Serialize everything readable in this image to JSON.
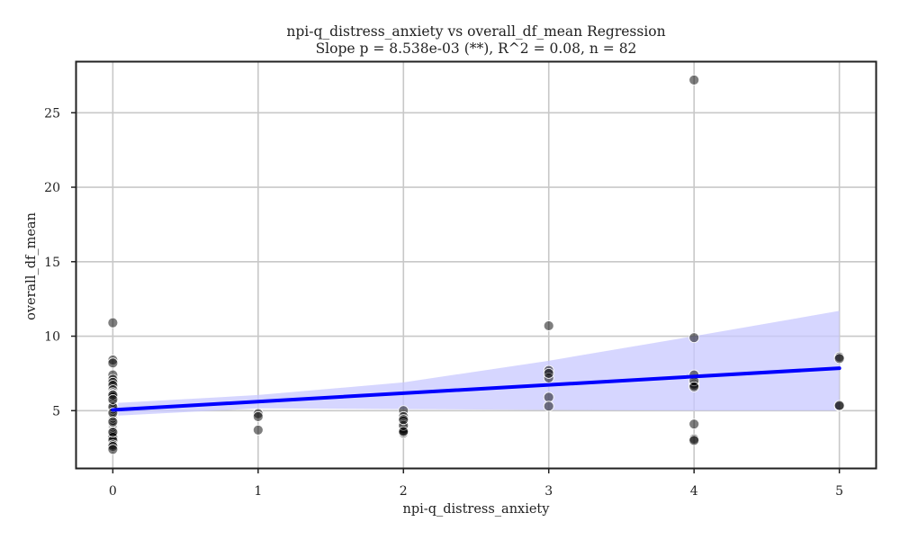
{
  "chart_data": {
    "type": "scatter",
    "title": "npi-q_distress_anxiety vs overall_df_mean Regression",
    "subtitle": "Slope p = 8.538e-03 (**), R^2 = 0.08, n = 82",
    "xlabel": "npi-q_distress_anxiety",
    "ylabel": "overall_df_mean",
    "xlim": [
      -0.25,
      5.25
    ],
    "ylim": [
      1.15,
      28.4
    ],
    "x_ticks": [
      0,
      1,
      2,
      3,
      4,
      5
    ],
    "y_ticks": [
      5,
      10,
      15,
      20,
      25
    ],
    "grid": true,
    "colors": {
      "points": "#000000",
      "regression_line": "#0000ff",
      "confidence_band": "#c8c8ff"
    },
    "points": [
      {
        "x": 0,
        "y": 10.9
      },
      {
        "x": 0,
        "y": 8.4
      },
      {
        "x": 0,
        "y": 8.2
      },
      {
        "x": 0,
        "y": 7.4
      },
      {
        "x": 0,
        "y": 7.1
      },
      {
        "x": 0,
        "y": 6.9
      },
      {
        "x": 0,
        "y": 6.7
      },
      {
        "x": 0,
        "y": 6.4
      },
      {
        "x": 0,
        "y": 6.2
      },
      {
        "x": 0,
        "y": 6.1
      },
      {
        "x": 0,
        "y": 6.0
      },
      {
        "x": 0,
        "y": 5.9
      },
      {
        "x": 0,
        "y": 5.7
      },
      {
        "x": 0,
        "y": 5.6
      },
      {
        "x": 0,
        "y": 5.5
      },
      {
        "x": 0,
        "y": 5.4
      },
      {
        "x": 0,
        "y": 5.3
      },
      {
        "x": 0,
        "y": 5.2
      },
      {
        "x": 0,
        "y": 5.1
      },
      {
        "x": 0,
        "y": 5.0
      },
      {
        "x": 0,
        "y": 4.9
      },
      {
        "x": 0,
        "y": 4.8
      },
      {
        "x": 0,
        "y": 4.7
      },
      {
        "x": 0,
        "y": 4.6
      },
      {
        "x": 0,
        "y": 4.5
      },
      {
        "x": 0,
        "y": 4.4
      },
      {
        "x": 0,
        "y": 4.3
      },
      {
        "x": 0,
        "y": 4.2
      },
      {
        "x": 0,
        "y": 4.1
      },
      {
        "x": 0,
        "y": 4.0
      },
      {
        "x": 0,
        "y": 3.9
      },
      {
        "x": 0,
        "y": 3.8
      },
      {
        "x": 0,
        "y": 3.7
      },
      {
        "x": 0,
        "y": 3.6
      },
      {
        "x": 0,
        "y": 3.5
      },
      {
        "x": 0,
        "y": 3.4
      },
      {
        "x": 0,
        "y": 3.3
      },
      {
        "x": 0,
        "y": 3.2
      },
      {
        "x": 0,
        "y": 3.0
      },
      {
        "x": 0,
        "y": 2.7
      },
      {
        "x": 0,
        "y": 2.6
      },
      {
        "x": 0,
        "y": 2.4
      },
      {
        "x": 0,
        "y": 5.25
      },
      {
        "x": 0,
        "y": 4.85
      },
      {
        "x": 0,
        "y": 6.05
      },
      {
        "x": 0,
        "y": 3.55
      },
      {
        "x": 0,
        "y": 4.25
      },
      {
        "x": 0,
        "y": 5.75
      },
      {
        "x": 1,
        "y": 4.8
      },
      {
        "x": 1,
        "y": 4.6
      },
      {
        "x": 1,
        "y": 3.7
      },
      {
        "x": 2,
        "y": 5.0
      },
      {
        "x": 2,
        "y": 4.6
      },
      {
        "x": 2,
        "y": 4.3
      },
      {
        "x": 2,
        "y": 4.1
      },
      {
        "x": 2,
        "y": 3.9
      },
      {
        "x": 2,
        "y": 3.8
      },
      {
        "x": 2,
        "y": 3.7
      },
      {
        "x": 2,
        "y": 3.5
      },
      {
        "x": 2,
        "y": 4.0
      },
      {
        "x": 2,
        "y": 4.4
      },
      {
        "x": 2,
        "y": 3.6
      },
      {
        "x": 3,
        "y": 10.7
      },
      {
        "x": 3,
        "y": 7.7
      },
      {
        "x": 3,
        "y": 7.2
      },
      {
        "x": 3,
        "y": 5.9
      },
      {
        "x": 3,
        "y": 5.3
      },
      {
        "x": 3,
        "y": 7.5
      },
      {
        "x": 4,
        "y": 27.2
      },
      {
        "x": 4,
        "y": 9.9
      },
      {
        "x": 4,
        "y": 7.4
      },
      {
        "x": 4,
        "y": 6.8
      },
      {
        "x": 4,
        "y": 6.7
      },
      {
        "x": 4,
        "y": 4.1
      },
      {
        "x": 4,
        "y": 3.1
      },
      {
        "x": 4,
        "y": 3.0
      },
      {
        "x": 4,
        "y": 7.0
      },
      {
        "x": 4,
        "y": 6.6
      },
      {
        "x": 5,
        "y": 8.6
      },
      {
        "x": 5,
        "y": 5.3
      },
      {
        "x": 5,
        "y": 8.5
      },
      {
        "x": 5,
        "y": 5.35
      }
    ],
    "regression": {
      "line": [
        [
          0,
          5.05
        ],
        [
          5,
          7.85
        ]
      ],
      "ci_upper": [
        [
          0,
          5.5
        ],
        [
          1,
          6.05
        ],
        [
          2,
          6.9
        ],
        [
          3,
          8.35
        ],
        [
          4,
          10.0
        ],
        [
          5,
          11.7
        ]
      ],
      "ci_lower": [
        [
          0,
          4.65
        ],
        [
          1,
          5.15
        ],
        [
          2,
          5.1
        ],
        [
          3,
          5.05
        ],
        [
          4,
          5.0
        ],
        [
          5,
          5.0
        ]
      ]
    }
  }
}
